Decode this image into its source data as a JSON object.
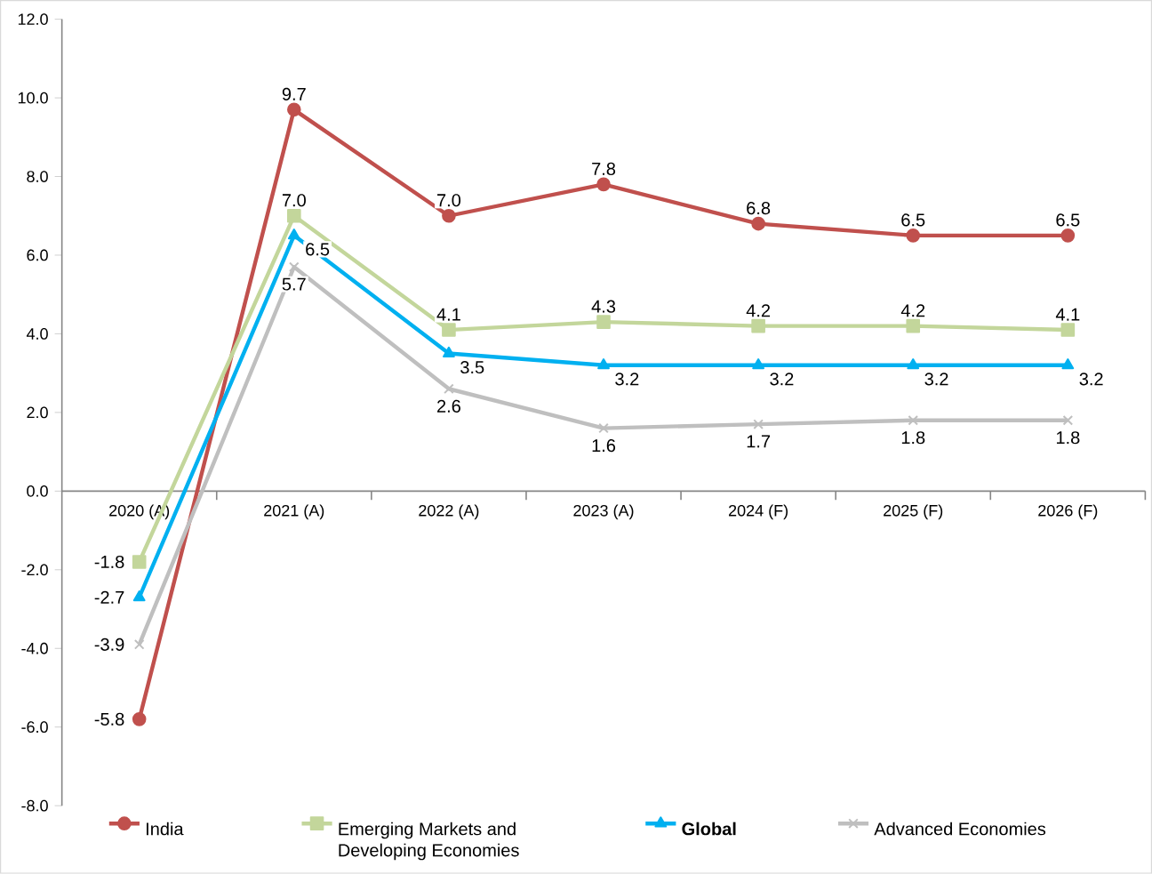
{
  "chart_data": {
    "type": "line",
    "categories": [
      "2020 (A)",
      "2021 (A)",
      "2022 (A)",
      "2023 (A)",
      "2024 (F)",
      "2025 (F)",
      "2026 (F)"
    ],
    "series": [
      {
        "name": "India",
        "color": "#c0504d",
        "marker": "circle",
        "values": [
          -5.8,
          9.7,
          7.0,
          7.8,
          6.8,
          6.5,
          6.5
        ],
        "value_labels": [
          "-5.8",
          "9.7",
          "7.0",
          "7.8",
          "6.8",
          "6.5",
          "6.5"
        ]
      },
      {
        "name": "Emerging Markets and Developing Economies",
        "color": "#c3d69b",
        "marker": "square",
        "values": [
          -1.8,
          7.0,
          4.1,
          4.3,
          4.2,
          4.2,
          4.1
        ],
        "value_labels": [
          "-1.8",
          "7.0",
          "4.1",
          "4.3",
          "4.2",
          "4.2",
          "4.1"
        ]
      },
      {
        "name": "**Global**",
        "color": "#00b0f0",
        "marker": "triangle",
        "values": [
          -2.7,
          6.5,
          3.5,
          3.2,
          3.2,
          3.2,
          3.2
        ],
        "value_labels": [
          "-2.7",
          "6.5",
          "3.5",
          "3.2",
          "3.2",
          "3.2",
          "3.2"
        ]
      },
      {
        "name": "Advanced Economies",
        "color": "#bfbfbf",
        "marker": "cross",
        "values": [
          -3.9,
          5.7,
          2.6,
          1.6,
          1.7,
          1.8,
          1.8
        ],
        "value_labels": [
          "-3.9",
          "5.7",
          "2.6",
          "1.6",
          "1.7",
          "1.8",
          "1.8"
        ]
      }
    ],
    "ylim": [
      -8,
      12
    ],
    "yticks": [
      {
        "value": -8,
        "label": "-8.0"
      },
      {
        "value": -6,
        "label": "-6.0"
      },
      {
        "value": -4,
        "label": "-4.0"
      },
      {
        "value": -2,
        "label": "-2.0"
      },
      {
        "value": 0,
        "label": "0.0"
      },
      {
        "value": 2,
        "label": "2.0"
      },
      {
        "value": 4,
        "label": "4.0"
      },
      {
        "value": 6,
        "label": "6.0"
      },
      {
        "value": 8,
        "label": "8.0"
      },
      {
        "value": 10,
        "label": "10.0"
      },
      {
        "value": 12,
        "label": "12.0"
      }
    ],
    "grid": false,
    "legend": "bottom",
    "line_style": "solid"
  }
}
